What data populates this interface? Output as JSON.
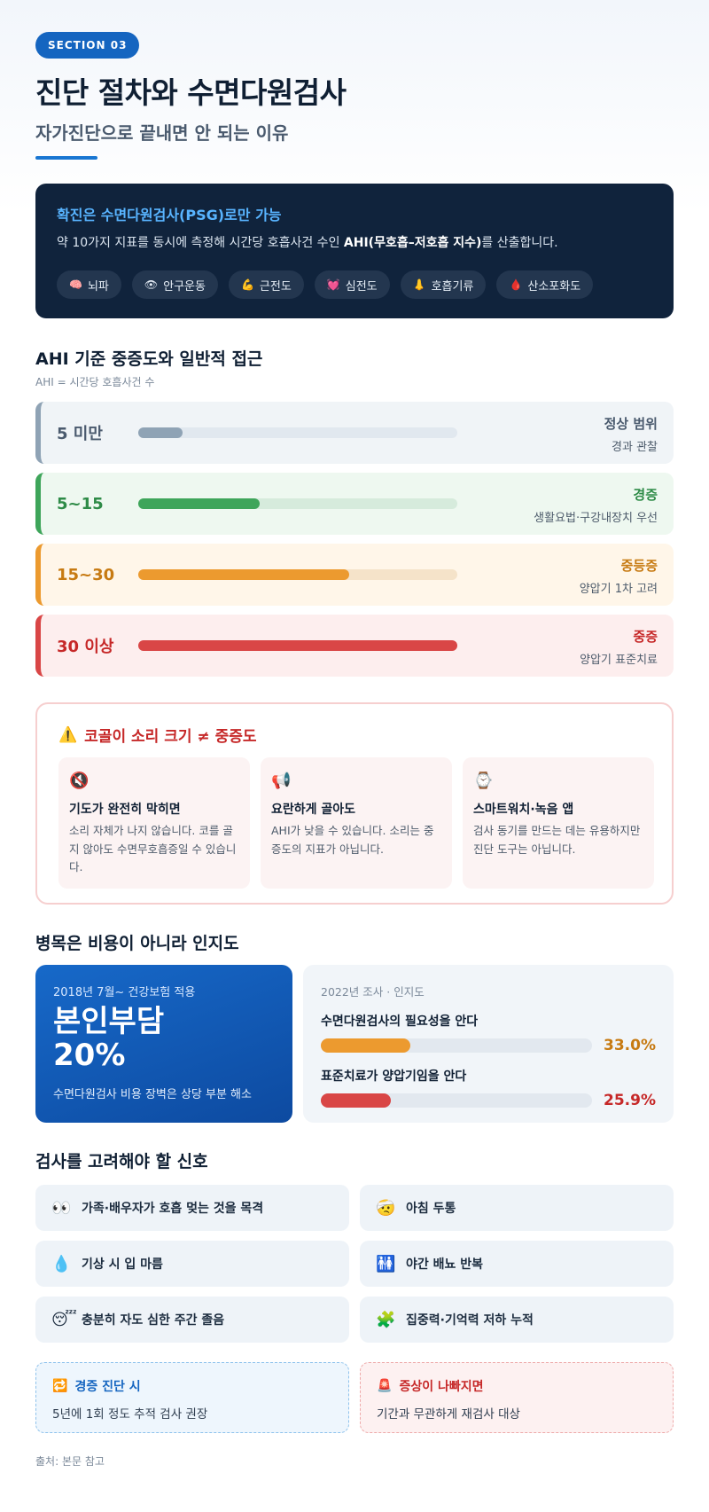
{
  "header": {
    "section_pill": "SECTION 03",
    "title": "진단 절차와 수면다원검사",
    "subtitle": "자가진단으로 끝내면 안 되는 이유"
  },
  "psg_card": {
    "title": "확진은 수면다원검사(PSG)로만 가능",
    "desc_pre": "약 10가지 지표를 동시에 측정해 시간당 호흡사건 수인 ",
    "desc_bold": "AHI(무호흡–저호흡 지수)",
    "desc_post": "를 산출합니다.",
    "chips": [
      {
        "icon": "brain-icon",
        "glyph": "🧠",
        "label": "뇌파"
      },
      {
        "icon": "eye-icon",
        "glyph": "👁",
        "label": "안구운동"
      },
      {
        "icon": "muscle-icon",
        "glyph": "💪",
        "label": "근전도"
      },
      {
        "icon": "heart-icon",
        "glyph": "💓",
        "label": "심전도"
      },
      {
        "icon": "nose-icon",
        "glyph": "👃",
        "label": "호흡기류"
      },
      {
        "icon": "blood-drop-icon",
        "glyph": "🩸",
        "label": "산소포화도"
      }
    ]
  },
  "ahi_section": {
    "title": "AHI 기준 중증도와 일반적 접근",
    "subtitle": "AHI = 시간당 호흡사건 수",
    "levels": [
      {
        "range": "5 미만",
        "name": "정상 범위",
        "note": "경과 관찰",
        "fill": 0.14,
        "color": "#8fa3b5",
        "text_color": "#4a5a6e",
        "bg": "#f0f4f7",
        "track": "#e1e8ef"
      },
      {
        "range": "5~15",
        "name": "경증",
        "note": "생활요법·구강내장치 우선",
        "fill": 0.38,
        "color": "#3ea55a",
        "text_color": "#2e8b47",
        "bg": "#eef8f0",
        "track": "#d6ebdc"
      },
      {
        "range": "15~30",
        "name": "중등증",
        "note": "양압기 1차 고려",
        "fill": 0.66,
        "color": "#ec9a2f",
        "text_color": "#c77a12",
        "bg": "#fff6e9",
        "track": "#f5e3c9"
      },
      {
        "range": "30 이상",
        "name": "중증",
        "note": "양압기 표준치료",
        "fill": 1.0,
        "color": "#d94646",
        "text_color": "#c62828",
        "bg": "#fdeeee",
        "track": "#f3d2d2"
      }
    ]
  },
  "snore_warning": {
    "title": "코골이 소리 크기 ≠ 중증도",
    "cards": [
      {
        "icon": "mute-speaker-icon",
        "glyph": "🔇",
        "title": "기도가 완전히 막히면",
        "desc": "소리 자체가 나지 않습니다. 코를 골지 않아도 수면무호흡증일 수 있습니다."
      },
      {
        "icon": "megaphone-icon",
        "glyph": "📢",
        "title": "요란하게 골아도",
        "desc": "AHI가 낮을 수 있습니다. 소리는 중증도의 지표가 아닙니다."
      },
      {
        "icon": "watch-icon",
        "glyph": "⌚",
        "title": "스마트워치·녹음 앱",
        "desc": "검사 동기를 만드는 데는 유용하지만 진단 도구는 아닙니다."
      }
    ]
  },
  "cost_section": {
    "title": "병목은 비용이 아니라 인지도",
    "insurance": {
      "kicker": "2018년 7월~ 건강보험 적용",
      "big_line1": "본인부담",
      "big_line2": "20%",
      "note": "수면다원검사 비용 장벽은 상당 부분 해소"
    },
    "awareness": {
      "kicker": "2022년 조사 · 인지도",
      "items": [
        {
          "label": "수면다원검사의 필요성을 안다",
          "value": 33.0,
          "display": "33.0%",
          "color": "#ec9a2f",
          "text_color": "#c77a12"
        },
        {
          "label": "표준치료가 양압기임을 안다",
          "value": 25.9,
          "display": "25.9%",
          "color": "#d94646",
          "text_color": "#c62828"
        }
      ]
    }
  },
  "signals": {
    "title": "검사를 고려해야 할 신호",
    "items": [
      {
        "icon": "eyes-icon",
        "glyph": "👀",
        "label": "가족·배우자가 호흡 멎는 것을 목격"
      },
      {
        "icon": "headache-face-icon",
        "glyph": "🤕",
        "label": "아침 두통"
      },
      {
        "icon": "water-drop-icon",
        "glyph": "💧",
        "label": "기상 시 입 마름"
      },
      {
        "icon": "restroom-icon",
        "glyph": "🚻",
        "label": "야간 배뇨 반복"
      },
      {
        "icon": "sleepy-face-icon",
        "glyph": "😴",
        "label": "충분히 자도 심한 주간 졸음"
      },
      {
        "icon": "puzzle-icon",
        "glyph": "🧩",
        "label": "집중력·기억력 저하 누적"
      }
    ]
  },
  "notes": {
    "mild": {
      "icon": "repeat-icon",
      "glyph": "🔁",
      "title": "경증 진단 시",
      "desc": "5년에 1회 정도 추적 검사 권장"
    },
    "worse": {
      "icon": "siren-icon",
      "glyph": "🚨",
      "title": "증상이 나빠지면",
      "desc": "기간과 무관하게 재검사 대상"
    }
  },
  "source": "출처: 본문 참고"
}
